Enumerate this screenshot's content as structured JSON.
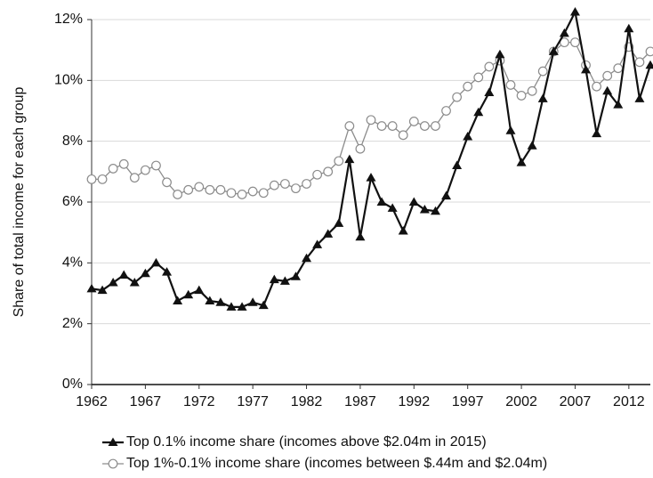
{
  "chart_data": {
    "type": "line",
    "y_label": "Share of total income for each group",
    "x": [
      1962,
      1963,
      1964,
      1965,
      1966,
      1967,
      1968,
      1969,
      1970,
      1971,
      1972,
      1973,
      1974,
      1975,
      1976,
      1977,
      1978,
      1979,
      1980,
      1981,
      1982,
      1983,
      1984,
      1985,
      1986,
      1987,
      1988,
      1989,
      1990,
      1991,
      1992,
      1993,
      1994,
      1995,
      1996,
      1997,
      1998,
      1999,
      2000,
      2001,
      2002,
      2003,
      2004,
      2005,
      2006,
      2007,
      2008,
      2009,
      2010,
      2011,
      2012,
      2013,
      2014
    ],
    "series": [
      {
        "name": "Top 0.1% income share (incomes above $2.04m in 2015)",
        "color": "#111111",
        "marker": "triangle",
        "values": [
          3.15,
          3.1,
          3.35,
          3.6,
          3.35,
          3.65,
          4.0,
          3.7,
          2.75,
          2.95,
          3.1,
          2.75,
          2.7,
          2.55,
          2.55,
          2.7,
          2.6,
          3.45,
          3.4,
          3.55,
          4.15,
          4.6,
          4.95,
          5.3,
          7.4,
          4.85,
          6.8,
          6.0,
          5.8,
          5.05,
          6.0,
          5.75,
          5.7,
          6.2,
          7.2,
          8.15,
          8.95,
          9.6,
          10.85,
          8.35,
          7.3,
          7.85,
          9.4,
          10.95,
          11.55,
          12.25,
          10.35,
          8.25,
          9.65,
          9.2,
          11.7,
          9.4,
          10.5
        ]
      },
      {
        "name": "Top 1%-0.1% income share (incomes between $.44m and $2.04m)",
        "color": "#8c8c8c",
        "marker": "circle",
        "values": [
          6.75,
          6.75,
          7.1,
          7.25,
          6.8,
          7.05,
          7.2,
          6.65,
          6.25,
          6.4,
          6.5,
          6.4,
          6.4,
          6.3,
          6.25,
          6.35,
          6.3,
          6.55,
          6.6,
          6.45,
          6.6,
          6.9,
          7.0,
          7.35,
          8.5,
          7.75,
          8.7,
          8.5,
          8.5,
          8.2,
          8.65,
          8.5,
          8.5,
          9.0,
          9.45,
          9.8,
          10.1,
          10.45,
          10.65,
          9.85,
          9.5,
          9.65,
          10.3,
          10.95,
          11.25,
          11.25,
          10.5,
          9.8,
          10.15,
          10.4,
          11.1,
          10.6,
          10.95
        ]
      }
    ],
    "xlim": [
      1962,
      2014
    ],
    "xticks": [
      1962,
      1967,
      1972,
      1977,
      1982,
      1987,
      1992,
      1997,
      2002,
      2007,
      2012
    ],
    "ylim": [
      0,
      12
    ],
    "yticks": [
      {
        "value": 0,
        "label": "0%"
      },
      {
        "value": 2,
        "label": "2%"
      },
      {
        "value": 4,
        "label": "4%"
      },
      {
        "value": 6,
        "label": "6%"
      },
      {
        "value": 8,
        "label": "8%"
      },
      {
        "value": 10,
        "label": "10%"
      },
      {
        "value": 12,
        "label": "12%"
      }
    ],
    "grid": true,
    "legend": "bottom"
  }
}
